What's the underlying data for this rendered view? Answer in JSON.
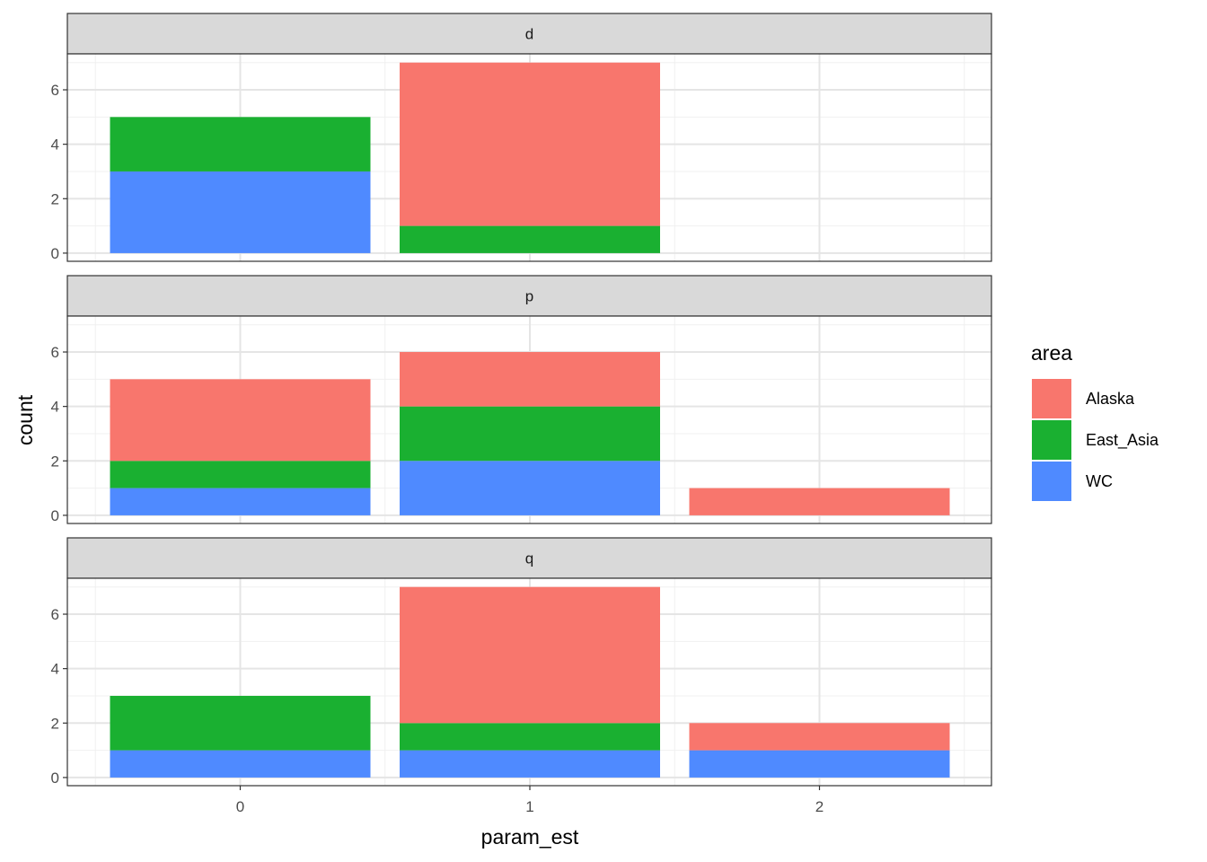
{
  "chart_data": {
    "type": "bar",
    "stacked": true,
    "facet_by": "metric",
    "x": [
      0,
      1,
      2
    ],
    "xlabel": "param_est",
    "ylabel": "count",
    "ylim": [
      0,
      7
    ],
    "yticks": [
      0,
      2,
      4,
      6
    ],
    "xticks": [
      0,
      1,
      2
    ],
    "grid": true,
    "legend": {
      "title": "area",
      "position": "right",
      "entries": [
        {
          "name": "Alaska",
          "color": "#F8766D"
        },
        {
          "name": "East_Asia",
          "color": "#1AB031"
        },
        {
          "name": "WC",
          "color": "#4F8AFF"
        }
      ]
    },
    "facets": [
      {
        "label": "d",
        "series": [
          {
            "name": "Alaska",
            "values": [
              0,
              6,
              0
            ]
          },
          {
            "name": "East_Asia",
            "values": [
              2,
              1,
              0
            ]
          },
          {
            "name": "WC",
            "values": [
              3,
              0,
              0
            ]
          }
        ]
      },
      {
        "label": "p",
        "series": [
          {
            "name": "Alaska",
            "values": [
              3,
              2,
              1
            ]
          },
          {
            "name": "East_Asia",
            "values": [
              1,
              2,
              0
            ]
          },
          {
            "name": "WC",
            "values": [
              1,
              2,
              0
            ]
          }
        ]
      },
      {
        "label": "q",
        "series": [
          {
            "name": "Alaska",
            "values": [
              0,
              5,
              1
            ]
          },
          {
            "name": "East_Asia",
            "values": [
              2,
              1,
              0
            ]
          },
          {
            "name": "WC",
            "values": [
              1,
              1,
              1
            ]
          }
        ]
      }
    ]
  }
}
